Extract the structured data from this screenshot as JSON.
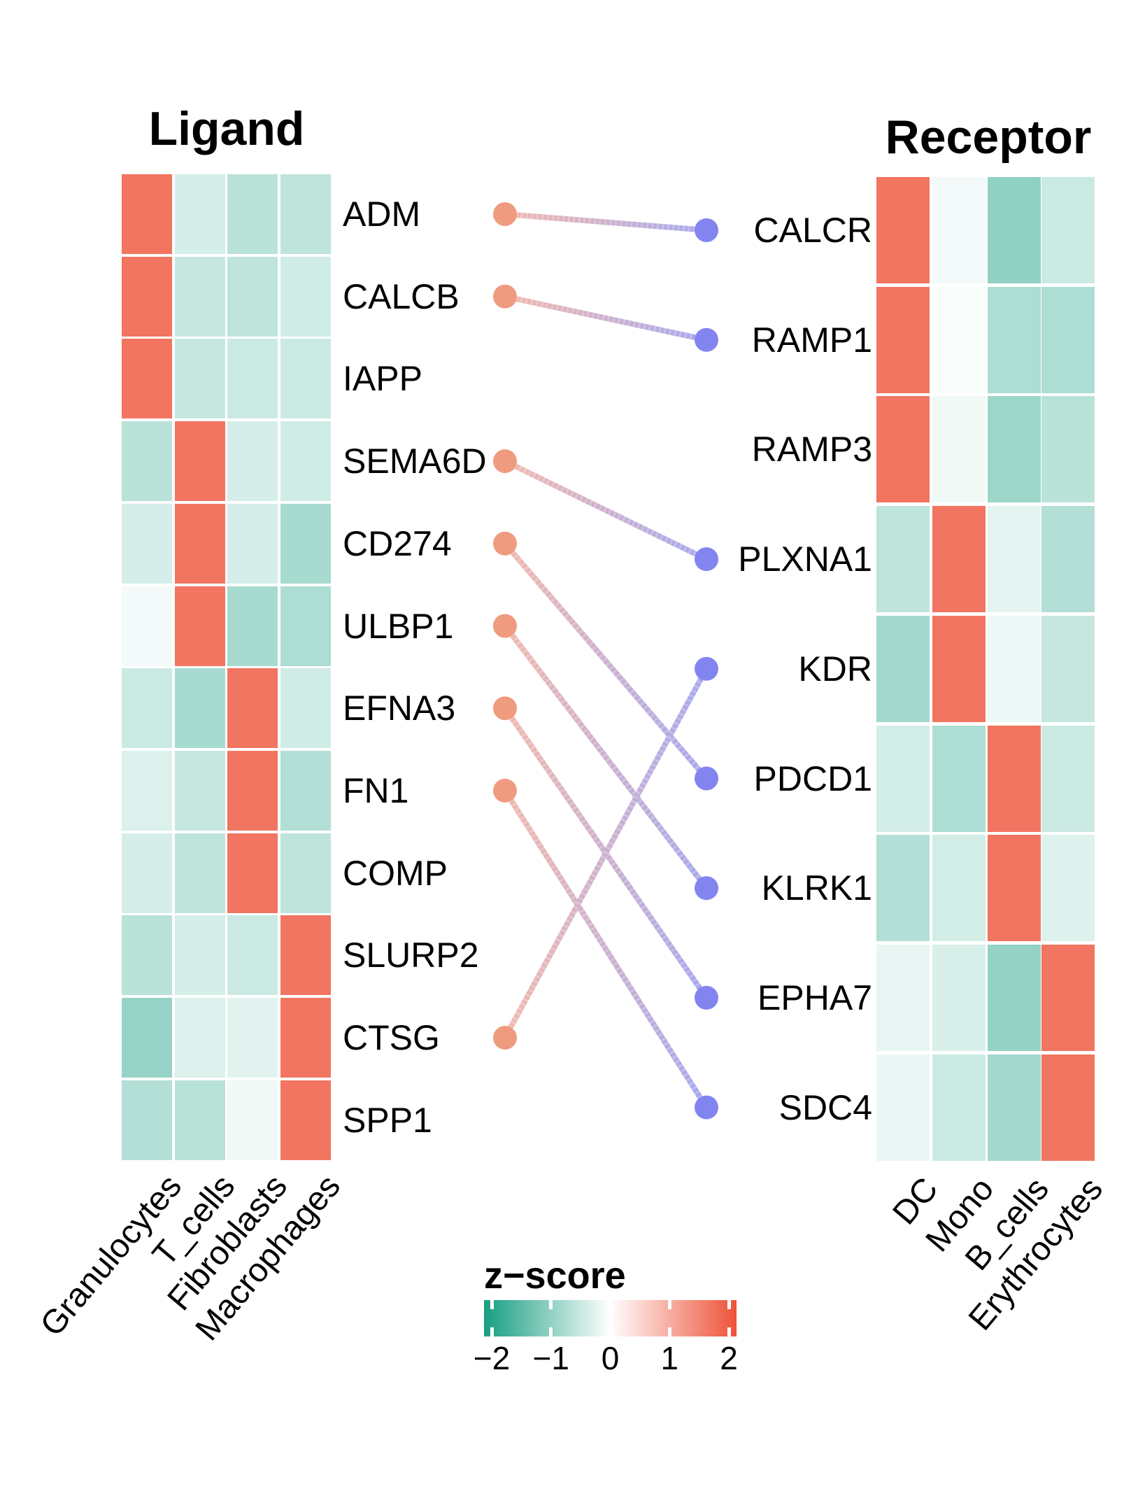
{
  "figure": {
    "ligand_title": "Ligand",
    "receptor_title": "Receptor"
  },
  "legend": {
    "title": "z−score",
    "tick_labels": [
      "−2",
      "−1",
      "0",
      "1",
      "2"
    ],
    "tick_values": [
      -2,
      -1,
      0,
      1,
      2
    ],
    "domain": [
      -2,
      2
    ],
    "color_low": "#169e81",
    "color_mid": "#ffffff",
    "color_high": "#ee5238"
  },
  "style_colors": {
    "ligand_dot": "#ef9b7f",
    "receptor_dot": "#8285f0",
    "link_start": "#f2b9ad",
    "link_end": "#a6a8ef",
    "text": "#000000"
  },
  "chart_data": {
    "type": "heatmap",
    "zlabel": "z−score",
    "zlim": [
      -2,
      2
    ],
    "panels": [
      {
        "id": "ligand",
        "title": "Ligand",
        "columns": [
          "Granulocytes",
          "T_cells",
          "Fibroblasts",
          "Macrophages"
        ],
        "rows": [
          "ADM",
          "CALCB",
          "IAPP",
          "SEMA6D",
          "CD274",
          "ULBP1",
          "EFNA3",
          "FN1",
          "COMP",
          "SLURP2",
          "CTSG",
          "SPP1"
        ],
        "z": [
          [
            1.6,
            -0.35,
            -0.6,
            -0.55
          ],
          [
            1.6,
            -0.5,
            -0.55,
            -0.4
          ],
          [
            1.6,
            -0.5,
            -0.45,
            -0.45
          ],
          [
            -0.6,
            1.6,
            -0.35,
            -0.4
          ],
          [
            -0.35,
            1.6,
            -0.35,
            -0.75
          ],
          [
            -0.1,
            1.6,
            -0.75,
            -0.7
          ],
          [
            -0.45,
            -0.75,
            1.6,
            -0.4
          ],
          [
            -0.3,
            -0.5,
            1.6,
            -0.65
          ],
          [
            -0.35,
            -0.55,
            1.6,
            -0.55
          ],
          [
            -0.6,
            -0.35,
            -0.45,
            1.6
          ],
          [
            -0.9,
            -0.3,
            -0.25,
            1.6
          ],
          [
            -0.65,
            -0.6,
            -0.12,
            1.6
          ]
        ]
      },
      {
        "id": "receptor",
        "title": "Receptor",
        "columns": [
          "DC",
          "Mono",
          "B_cells",
          "Erythrocytes"
        ],
        "rows": [
          "CALCR",
          "RAMP1",
          "RAMP3",
          "PLXNA1",
          "KDR",
          "PDCD1",
          "KLRK1",
          "EPHA7",
          "SDC4"
        ],
        "z": [
          [
            1.6,
            -0.1,
            -0.95,
            -0.45
          ],
          [
            1.6,
            -0.05,
            -0.7,
            -0.7
          ],
          [
            1.6,
            -0.12,
            -0.85,
            -0.6
          ],
          [
            -0.55,
            1.6,
            -0.22,
            -0.65
          ],
          [
            -0.8,
            1.6,
            -0.15,
            -0.5
          ],
          [
            -0.38,
            -0.7,
            1.6,
            -0.45
          ],
          [
            -0.65,
            -0.38,
            1.6,
            -0.28
          ],
          [
            -0.2,
            -0.33,
            -0.92,
            1.6
          ],
          [
            -0.18,
            -0.45,
            -0.8,
            1.6
          ]
        ]
      }
    ],
    "links": [
      {
        "ligand": "ADM",
        "receptor": "CALCR"
      },
      {
        "ligand": "CALCB",
        "receptor": "RAMP1"
      },
      {
        "ligand": "SEMA6D",
        "receptor": "PLXNA1"
      },
      {
        "ligand": "CD274",
        "receptor": "PDCD1"
      },
      {
        "ligand": "ULBP1",
        "receptor": "KLRK1"
      },
      {
        "ligand": "EFNA3",
        "receptor": "EPHA7"
      },
      {
        "ligand": "FN1",
        "receptor": "SDC4"
      },
      {
        "ligand": "CTSG",
        "receptor": "KDR"
      }
    ]
  }
}
